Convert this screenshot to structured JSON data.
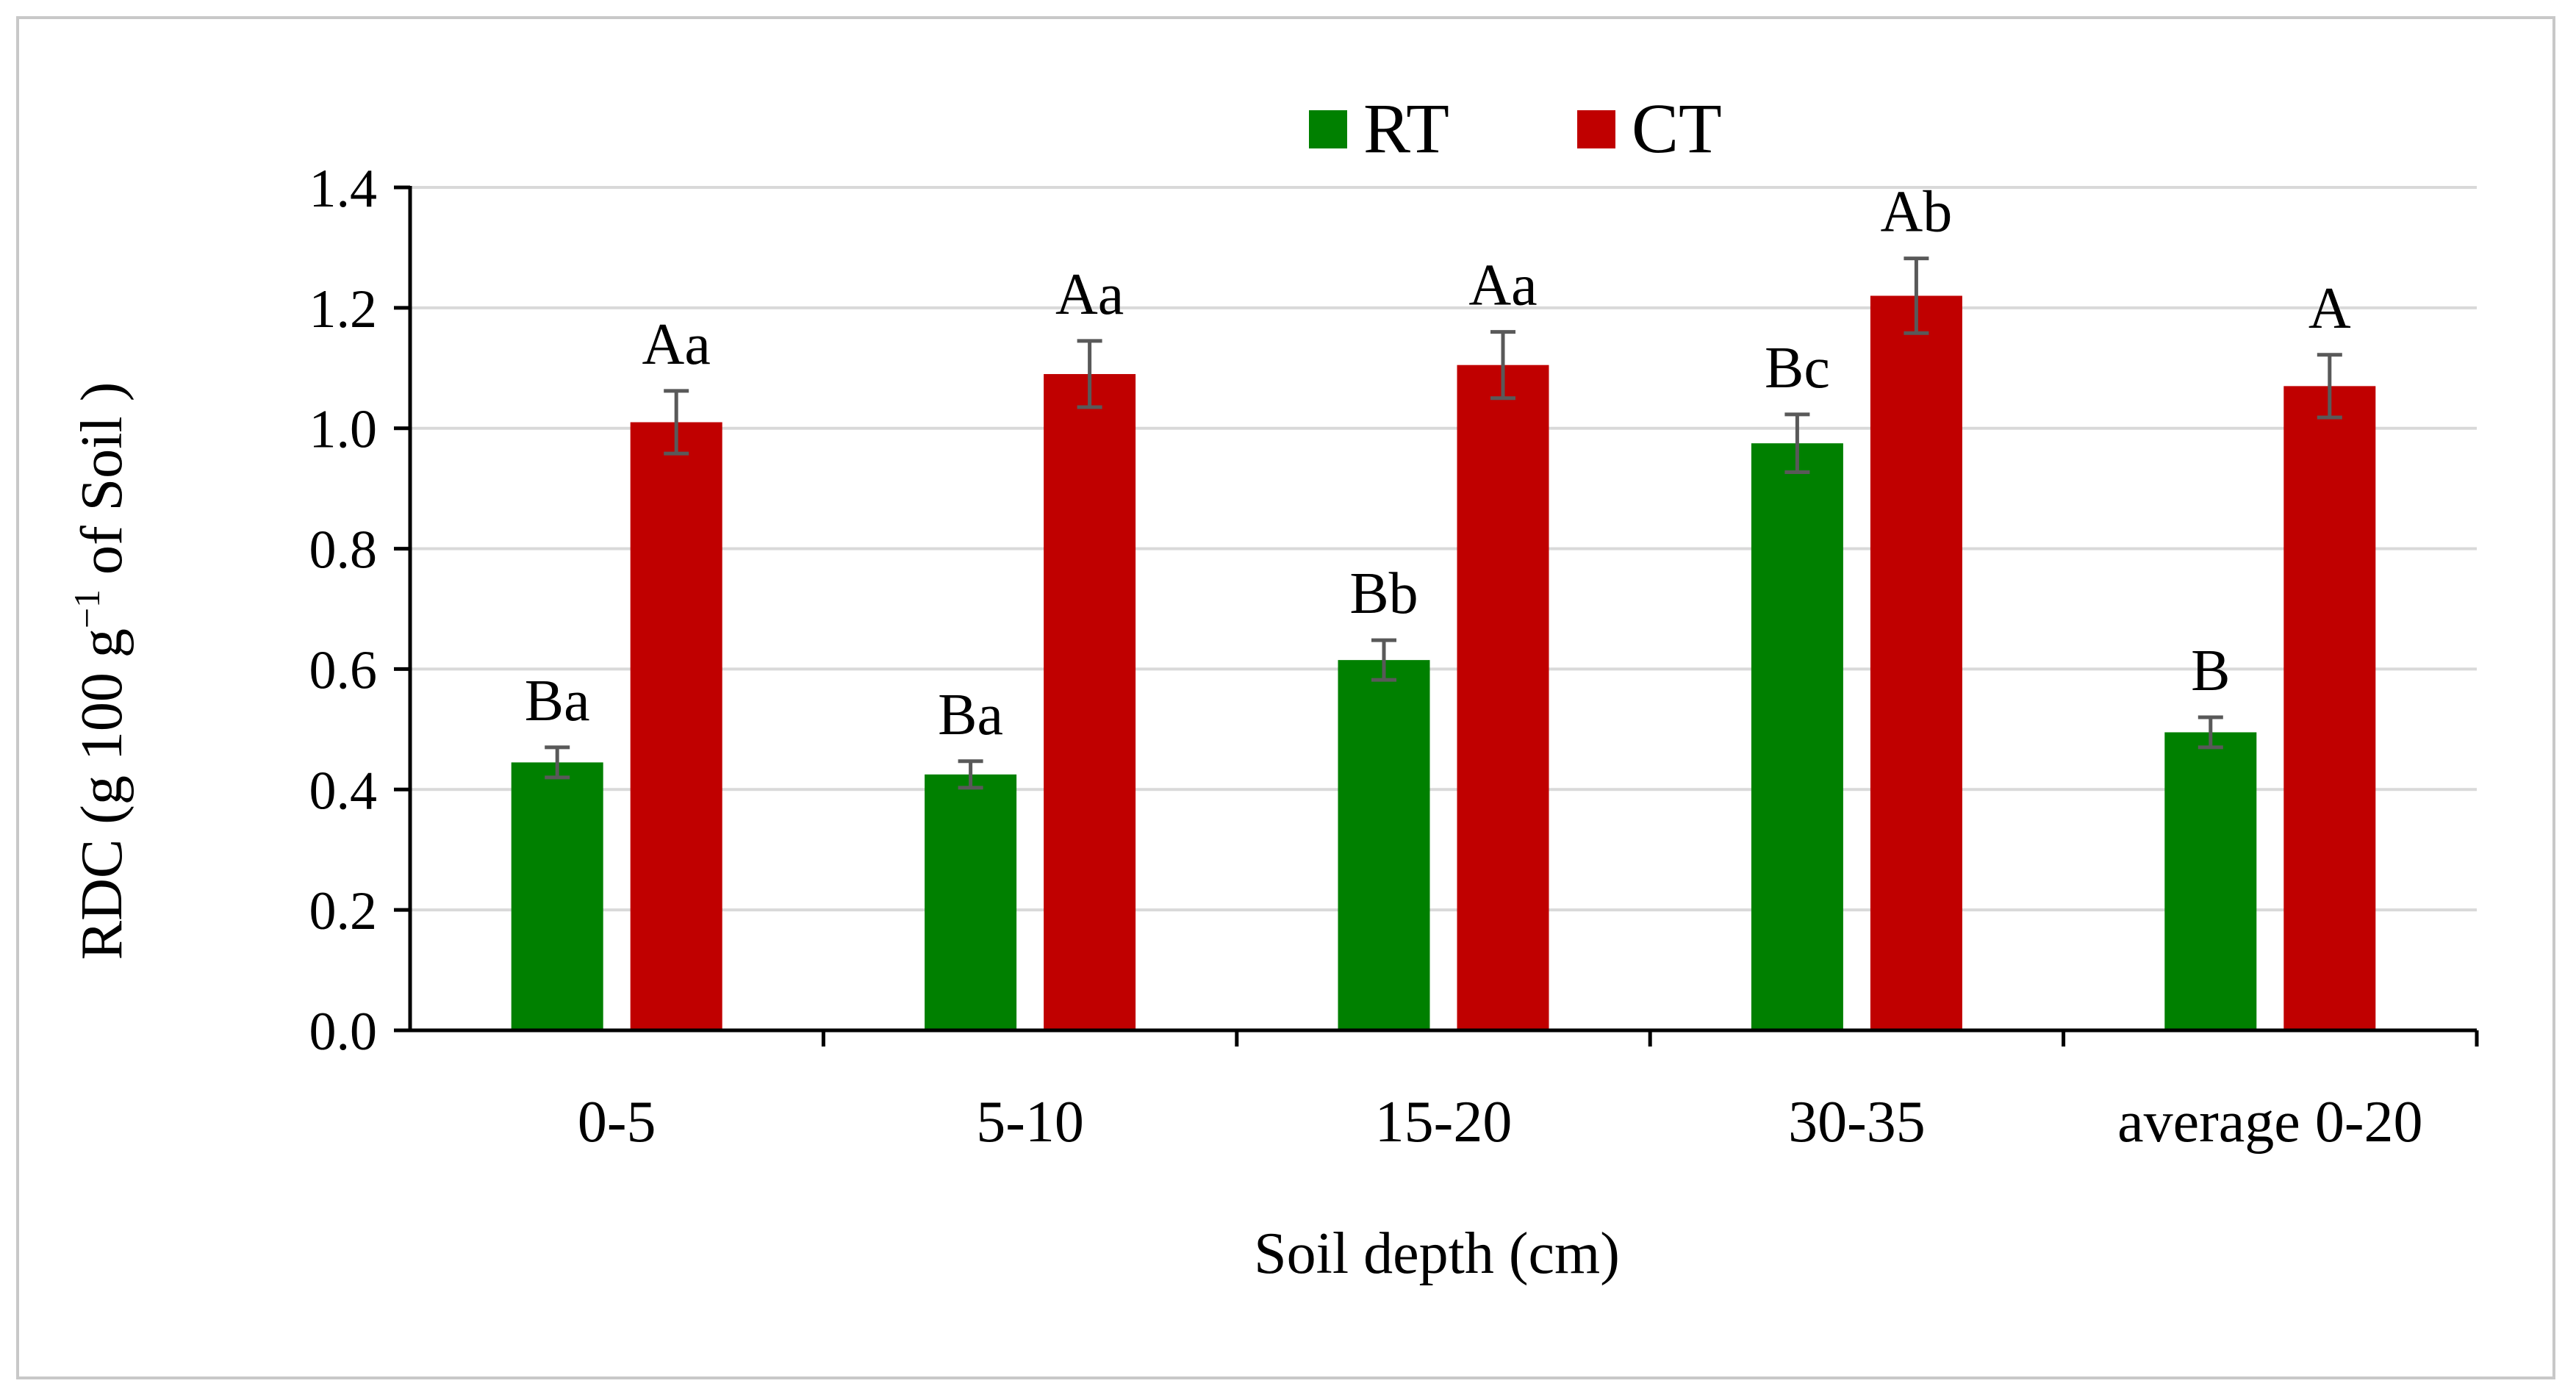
{
  "chart_data": {
    "type": "bar",
    "title": "",
    "xlabel": "Soil depth (cm)",
    "ylabel": {
      "pre": "RDC (g 100 g",
      "sup": "−1",
      "post": " of Soil )"
    },
    "ylim": [
      0,
      1.4
    ],
    "yticks": [
      0,
      0.2,
      0.4,
      0.6,
      0.8,
      1.0,
      1.2,
      1.4
    ],
    "ytick_labels": [
      "0.0",
      "0.2",
      "0.4",
      "0.6",
      "0.8",
      "1.0",
      "1.2",
      "1.4"
    ],
    "grid": true,
    "legend_position": "top-center",
    "categories": [
      "0-5",
      "5-10",
      "15-20",
      "30-35",
      "average 0-20"
    ],
    "series": [
      {
        "name": "RT",
        "color": "#008000",
        "values": [
          0.445,
          0.425,
          0.615,
          0.975,
          0.495
        ],
        "errors": [
          0.025,
          0.022,
          0.033,
          0.048,
          0.025
        ],
        "labels": [
          "Ba",
          "Ba",
          "Bb",
          "Bc",
          "B"
        ]
      },
      {
        "name": "CT",
        "color": "#C00000",
        "values": [
          1.01,
          1.09,
          1.105,
          1.22,
          1.07
        ],
        "errors": [
          0.052,
          0.055,
          0.055,
          0.062,
          0.052
        ],
        "labels": [
          "Aa",
          "Aa",
          "Aa",
          "Ab",
          "A"
        ]
      }
    ]
  }
}
